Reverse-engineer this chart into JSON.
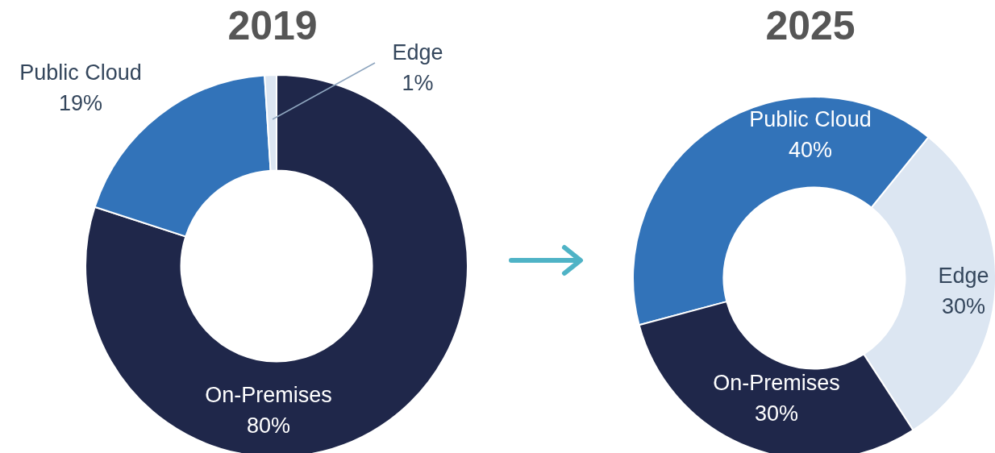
{
  "chart_data": [
    {
      "type": "donut",
      "title": "2019",
      "categories": [
        "On-Premises",
        "Public Cloud",
        "Edge"
      ],
      "values": [
        80,
        19,
        1
      ],
      "colors": [
        "#1f274a",
        "#3273b9",
        "#dce6f2"
      ],
      "value_labels": [
        "80%",
        "19%",
        "1%"
      ]
    },
    {
      "type": "donut",
      "title": "2025",
      "categories": [
        "Public Cloud",
        "Edge",
        "On-Premises"
      ],
      "values": [
        40,
        30,
        30
      ],
      "colors": [
        "#3273b9",
        "#dce6f2",
        "#1f274a"
      ],
      "value_labels": [
        "40%",
        "30%",
        "30%"
      ]
    }
  ]
}
